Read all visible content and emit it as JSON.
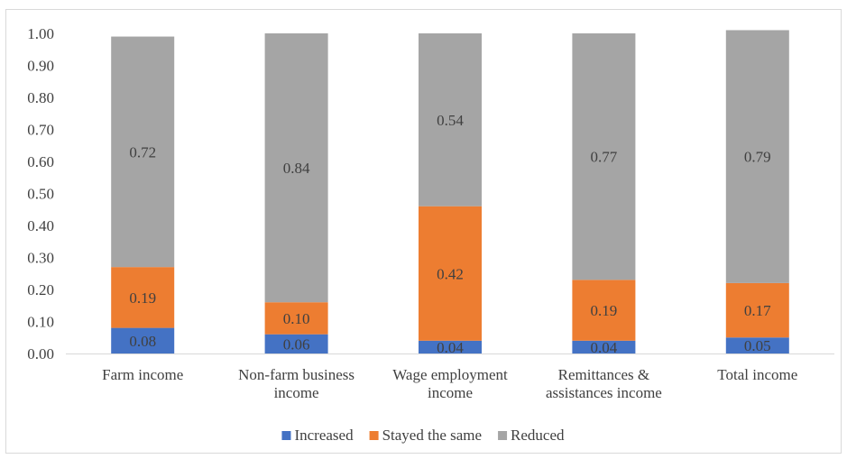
{
  "chart_data": {
    "type": "bar",
    "stacked": true,
    "categories": [
      [
        "Farm income"
      ],
      [
        "Non-farm business",
        "income"
      ],
      [
        "Wage employment",
        "income"
      ],
      [
        "Remittances &",
        "assistances income"
      ],
      [
        "Total income"
      ]
    ],
    "series": [
      {
        "name": "Increased",
        "color": "#4472c4",
        "values": [
          0.08,
          0.06,
          0.04,
          0.04,
          0.05
        ],
        "labels": [
          "0.08",
          "0.06",
          "0.04",
          "0.04",
          "0.05"
        ]
      },
      {
        "name": "Stayed the same",
        "color": "#ed7d31",
        "values": [
          0.19,
          0.1,
          0.42,
          0.19,
          0.17
        ],
        "labels": [
          "0.19",
          "0.10",
          "0.42",
          "0.19",
          "0.17"
        ]
      },
      {
        "name": "Reduced",
        "color": "#a5a5a5",
        "values": [
          0.72,
          0.84,
          0.54,
          0.77,
          0.79
        ],
        "labels": [
          "0.72",
          "0.84",
          "0.54",
          "0.77",
          "0.79"
        ]
      }
    ],
    "yticks": [
      "0.00",
      "0.10",
      "0.20",
      "0.30",
      "0.40",
      "0.50",
      "0.60",
      "0.70",
      "0.80",
      "0.90",
      "1.00"
    ],
    "ylim": [
      0,
      1
    ],
    "grid": false,
    "legend": "bottom",
    "title": "",
    "xlabel": "",
    "ylabel": ""
  }
}
